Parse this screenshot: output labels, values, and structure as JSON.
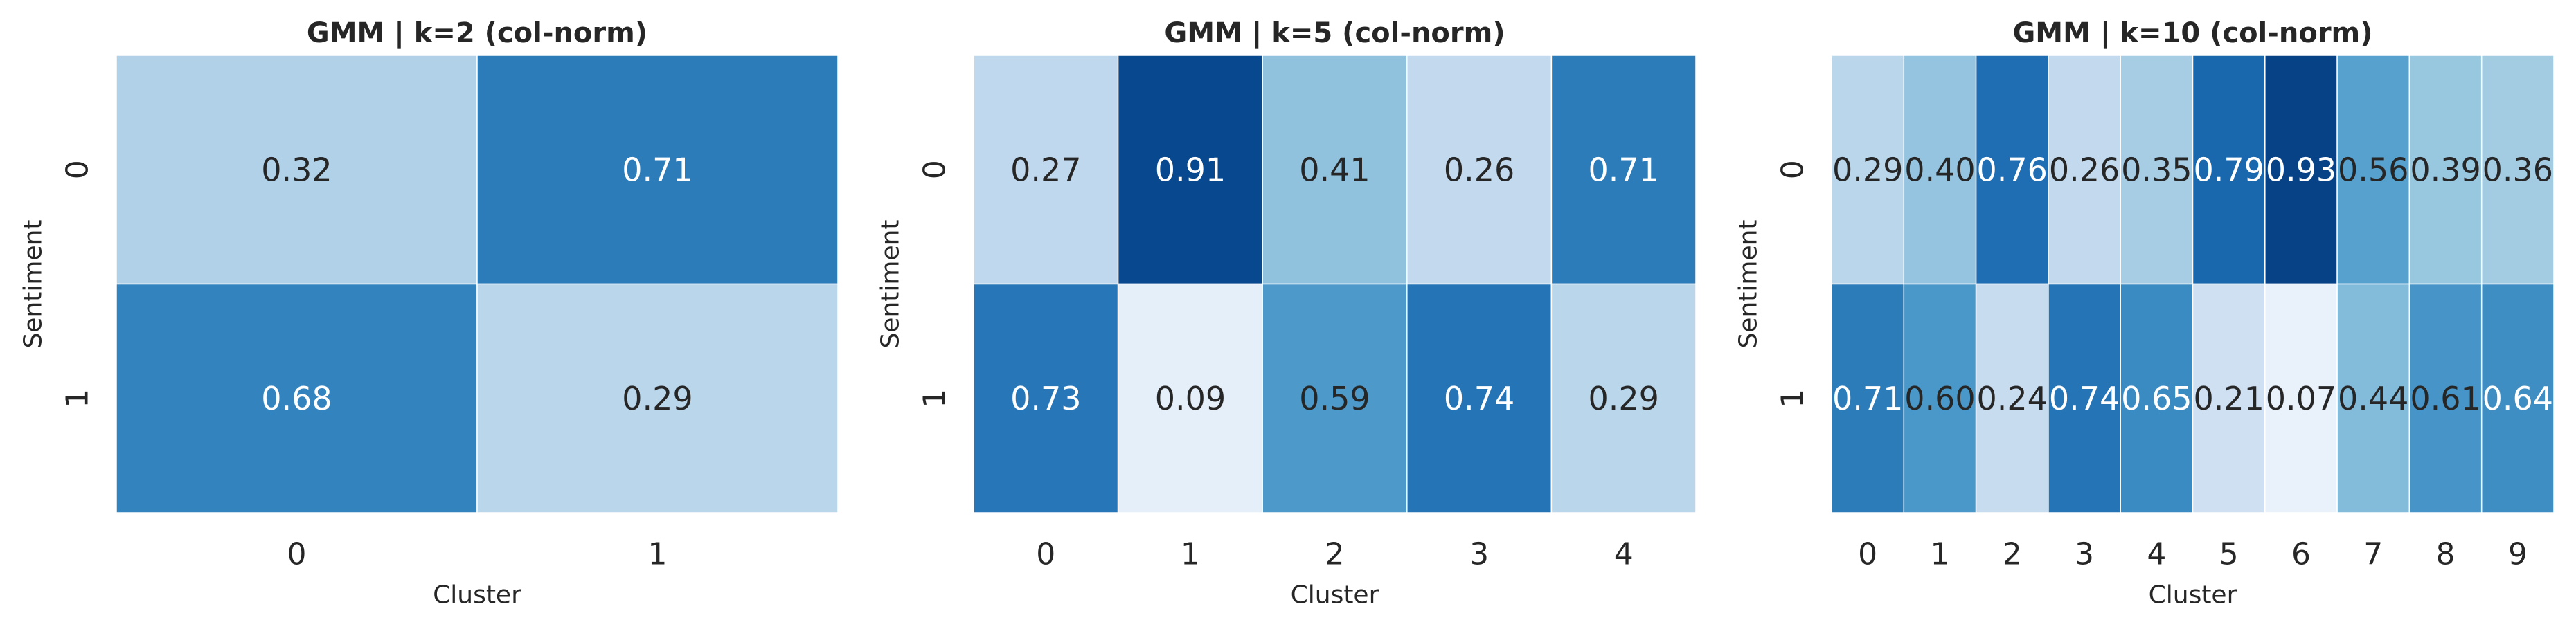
{
  "chart_data": [
    {
      "type": "heatmap",
      "title": "GMM | k=2 (col-norm)",
      "xlabel": "Cluster",
      "ylabel": "Sentiment",
      "x_categories": [
        "0",
        "1"
      ],
      "y_categories": [
        "0",
        "1"
      ],
      "values": [
        [
          0.32,
          0.71
        ],
        [
          0.68,
          0.29
        ]
      ],
      "value_labels": [
        [
          "0.32",
          "0.71"
        ],
        [
          "0.68",
          "0.29"
        ]
      ],
      "colormap": "Blues",
      "color_range": [
        0,
        1
      ],
      "grid": false,
      "legend": "none"
    },
    {
      "type": "heatmap",
      "title": "GMM | k=5 (col-norm)",
      "xlabel": "Cluster",
      "ylabel": "Sentiment",
      "x_categories": [
        "0",
        "1",
        "2",
        "3",
        "4"
      ],
      "y_categories": [
        "0",
        "1"
      ],
      "values": [
        [
          0.27,
          0.91,
          0.41,
          0.26,
          0.71
        ],
        [
          0.73,
          0.09,
          0.59,
          0.74,
          0.29
        ]
      ],
      "value_labels": [
        [
          "0.27",
          "0.91",
          "0.41",
          "0.26",
          "0.71"
        ],
        [
          "0.73",
          "0.09",
          "0.59",
          "0.74",
          "0.29"
        ]
      ],
      "colormap": "Blues",
      "color_range": [
        0,
        1
      ],
      "grid": false,
      "legend": "none"
    },
    {
      "type": "heatmap",
      "title": "GMM | k=10 (col-norm)",
      "xlabel": "Cluster",
      "ylabel": "Sentiment",
      "x_categories": [
        "0",
        "1",
        "2",
        "3",
        "4",
        "5",
        "6",
        "7",
        "8",
        "9"
      ],
      "y_categories": [
        "0",
        "1"
      ],
      "values": [
        [
          0.29,
          0.4,
          0.76,
          0.26,
          0.35,
          0.79,
          0.93,
          0.56,
          0.39,
          0.36
        ],
        [
          0.71,
          0.6,
          0.24,
          0.74,
          0.65,
          0.21,
          0.07,
          0.44,
          0.61,
          0.64
        ]
      ],
      "value_labels": [
        [
          "0.29",
          "0.40",
          "0.76",
          "0.26",
          "0.35",
          "0.79",
          "0.93",
          "0.56",
          "0.39",
          "0.36"
        ],
        [
          "0.71",
          "0.60",
          "0.24",
          "0.74",
          "0.65",
          "0.21",
          "0.07",
          "0.44",
          "0.61",
          "0.64"
        ]
      ],
      "colormap": "Blues",
      "color_range": [
        0,
        1
      ],
      "grid": false,
      "legend": "none"
    }
  ]
}
